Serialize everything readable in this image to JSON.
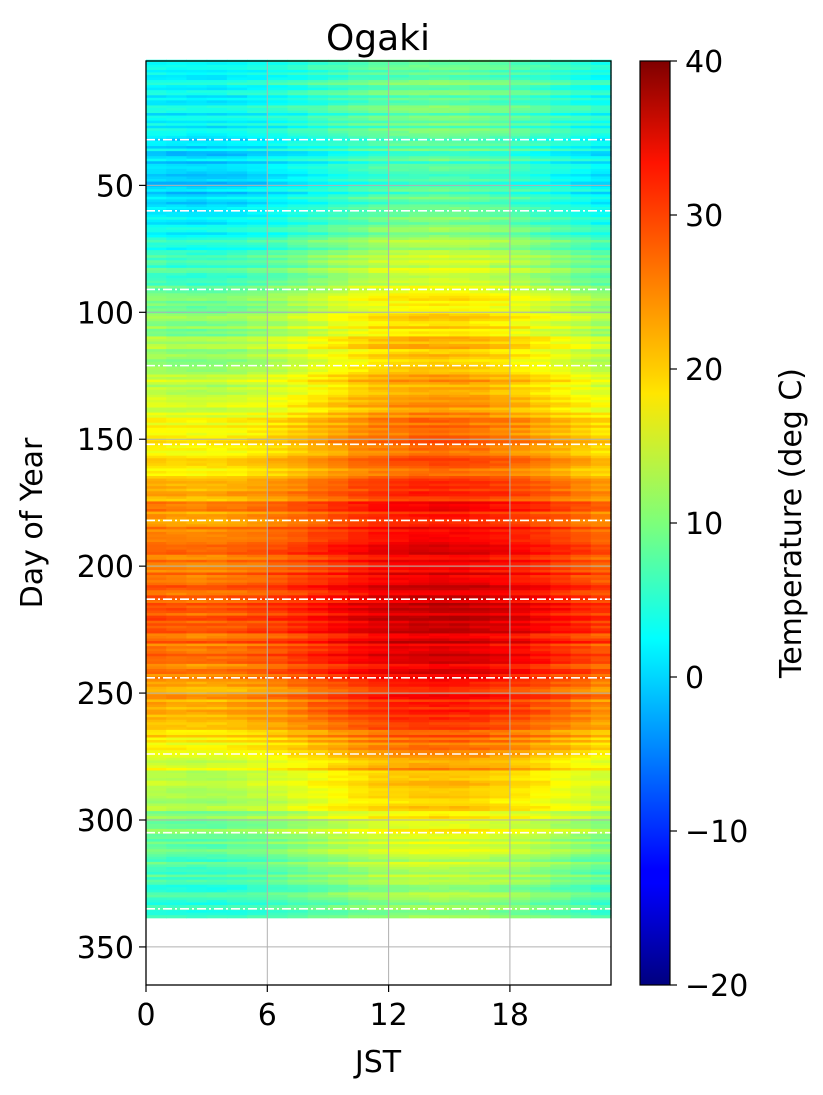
{
  "chart_data": {
    "type": "heatmap",
    "title": "Ogaki",
    "xlabel": "JST",
    "ylabel": "Day of Year",
    "colorbar_label": "Temperature (deg C)",
    "colormap": "jet",
    "xlim": [
      0,
      23
    ],
    "ylim": [
      365,
      1
    ],
    "x_ticks": [
      0,
      6,
      12,
      18
    ],
    "x_tick_labels": [
      "0",
      "6",
      "12",
      "18"
    ],
    "y_ticks": [
      50,
      100,
      150,
      200,
      250,
      300,
      350
    ],
    "y_tick_labels": [
      "50",
      "100",
      "150",
      "200",
      "250",
      "300",
      "350"
    ],
    "color_range": [
      -20,
      40
    ],
    "colorbar_ticks": [
      40,
      30,
      20,
      10,
      0,
      -10,
      -20
    ],
    "colorbar_tick_labels": [
      "40",
      "30",
      "20",
      "10",
      "0",
      "−10",
      "−20"
    ],
    "data_day_range": [
      1,
      338
    ],
    "month_boundary_days": [
      32,
      60,
      91,
      121,
      152,
      182,
      213,
      244,
      274,
      305,
      335
    ],
    "daily_mean_anchors": {
      "day": [
        1,
        30,
        45,
        60,
        80,
        100,
        120,
        140,
        160,
        175,
        190,
        210,
        225,
        240,
        260,
        280,
        300,
        320,
        338
      ],
      "temp": [
        6,
        5,
        3,
        5,
        10,
        14,
        17,
        20,
        23,
        27,
        29,
        31,
        31,
        29,
        25,
        19,
        14,
        10,
        7
      ]
    },
    "diurnal_amplitude_anchors": {
      "day": [
        1,
        60,
        120,
        180,
        240,
        300,
        338
      ],
      "amplitude": [
        3,
        4,
        5,
        4,
        4.5,
        4,
        3
      ]
    },
    "peak_hour": 14,
    "grid": true
  }
}
